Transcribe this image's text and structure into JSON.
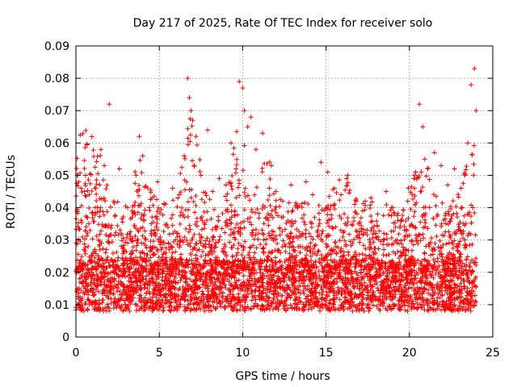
{
  "chart_data": {
    "type": "scatter",
    "title": "Day 217 of 2025, Rate Of TEC Index for receiver solo",
    "xlabel": "GPS time / hours",
    "ylabel": "ROTI / TECUs",
    "xlim": [
      0,
      25
    ],
    "ylim": [
      0,
      0.09
    ],
    "xticks": [
      0,
      5,
      10,
      15,
      20,
      25
    ],
    "xtick_labels": [
      "0",
      "5",
      "10",
      "15",
      "20",
      "25"
    ],
    "yticks": [
      0,
      0.01,
      0.02,
      0.03,
      0.04,
      0.05,
      0.06,
      0.07,
      0.08,
      0.09
    ],
    "ytick_labels": [
      "0",
      "0.01",
      "0.02",
      "0.03",
      "0.04",
      "0.05",
      "0.06",
      "0.07",
      "0.08",
      "0.09"
    ],
    "grid": true,
    "marker": "plus",
    "color": "#ff0000",
    "series": [
      {
        "name": "ROTI",
        "x": [
          0.1,
          0.3,
          0.5,
          0.8,
          1.2,
          1.5,
          1.7,
          2.0,
          2.6,
          3.1,
          3.6,
          3.8,
          4.0,
          4.4,
          4.9,
          5.3,
          5.8,
          6.2,
          6.5,
          6.7,
          6.8,
          6.9,
          7.0,
          7.2,
          7.5,
          7.9,
          8.2,
          8.6,
          9.0,
          9.3,
          9.6,
          9.8,
          10.0,
          10.1,
          10.3,
          10.5,
          10.8,
          11.2,
          11.6,
          12.0,
          12.4,
          12.9,
          13.3,
          13.8,
          14.2,
          14.7,
          15.1,
          15.5,
          15.9,
          16.3,
          16.8,
          17.2,
          17.7,
          18.1,
          18.6,
          19.0,
          19.5,
          19.9,
          20.3,
          20.6,
          20.8,
          21.1,
          21.5,
          21.9,
          22.3,
          22.7,
          23.1,
          23.5,
          23.7,
          23.9,
          24.0
        ],
        "y": [
          0.05,
          0.046,
          0.045,
          0.044,
          0.046,
          0.058,
          0.053,
          0.072,
          0.052,
          0.04,
          0.05,
          0.062,
          0.056,
          0.04,
          0.048,
          0.041,
          0.046,
          0.044,
          0.056,
          0.08,
          0.074,
          0.07,
          0.067,
          0.062,
          0.05,
          0.064,
          0.045,
          0.049,
          0.047,
          0.06,
          0.052,
          0.079,
          0.077,
          0.07,
          0.065,
          0.068,
          0.058,
          0.063,
          0.046,
          0.045,
          0.042,
          0.047,
          0.04,
          0.048,
          0.044,
          0.054,
          0.051,
          0.046,
          0.044,
          0.05,
          0.042,
          0.039,
          0.043,
          0.038,
          0.045,
          0.04,
          0.036,
          0.042,
          0.05,
          0.072,
          0.065,
          0.052,
          0.057,
          0.053,
          0.047,
          0.052,
          0.046,
          0.06,
          0.078,
          0.083,
          0.07
        ]
      }
    ]
  }
}
